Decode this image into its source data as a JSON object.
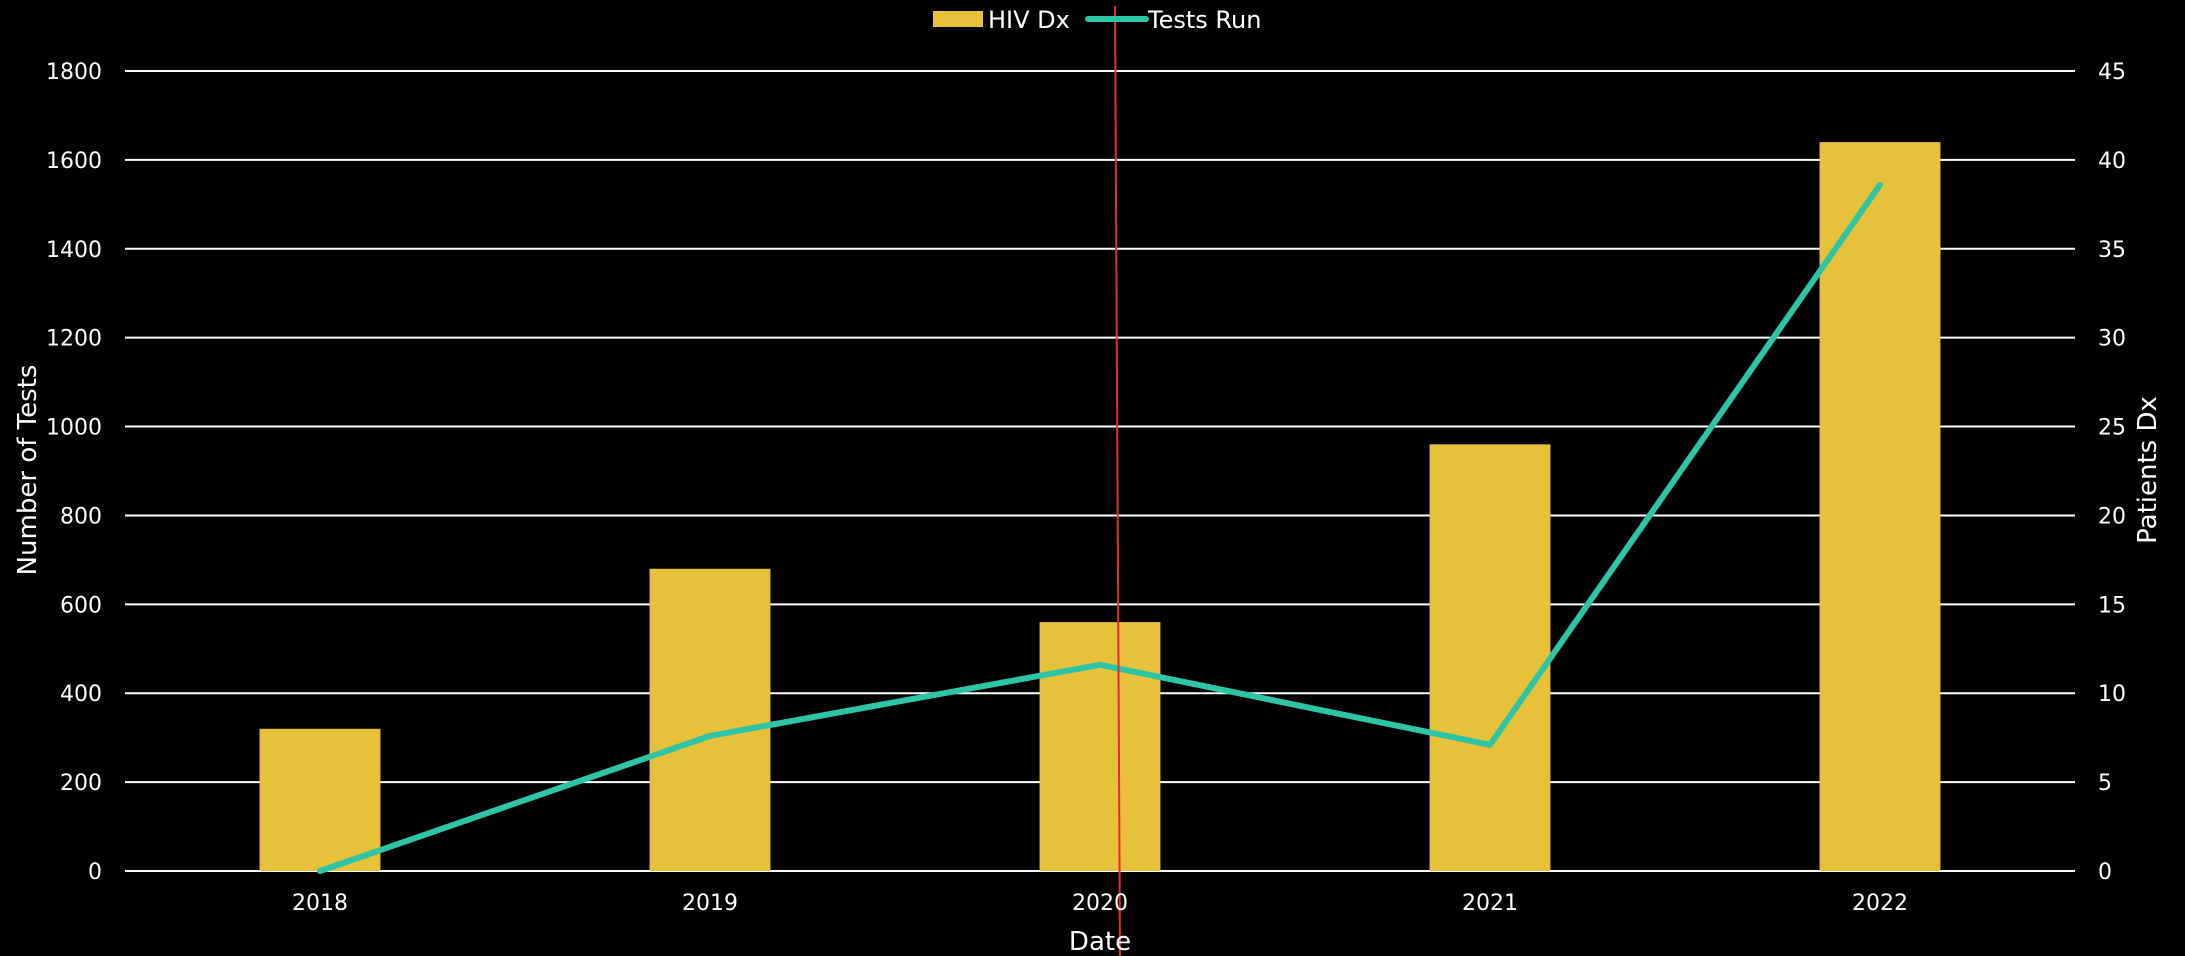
{
  "chart_data": {
    "type": "bar",
    "categories": [
      "2018",
      "2019",
      "2020",
      "2021",
      "2022"
    ],
    "series": [
      {
        "name": "HIV Dx",
        "type": "bar",
        "axis": "left",
        "values": [
          320,
          680,
          560,
          960,
          1640
        ]
      },
      {
        "name": "Tests Run",
        "type": "line",
        "axis": "right",
        "values": [
          0,
          7.6,
          11.6,
          7.1,
          38.6
        ]
      }
    ],
    "xlabel": "Date",
    "ylabel": "Number of Tests",
    "y2label": "Patients Dx",
    "ylim": [
      0,
      1800
    ],
    "y2lim": [
      0,
      45
    ],
    "yticks": [
      "0",
      "200",
      "400",
      "600",
      "800",
      "1000",
      "1200",
      "1400",
      "1600",
      "1800"
    ],
    "y2ticks": [
      "0",
      "5",
      "10",
      "15",
      "20",
      "25",
      "30",
      "35",
      "40",
      "45"
    ],
    "grid": "horizontal",
    "legend_position": "top-center",
    "marker_line_category": "2020",
    "colors": {
      "background": "#000000",
      "bar": "#E8C13A",
      "line": "#2EC4A6",
      "grid": "#FFFFFF",
      "marker": "#E0302E",
      "text": "#FFFFFF"
    }
  }
}
